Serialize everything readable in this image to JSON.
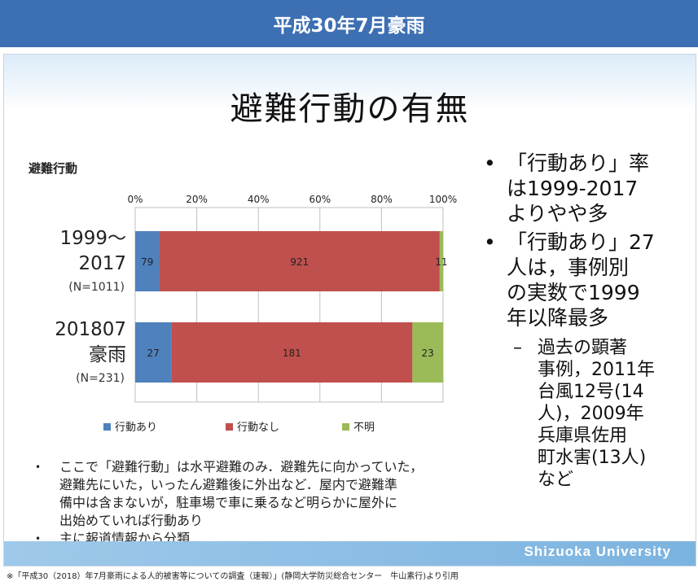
{
  "header": {
    "title": "平成30年7月豪雨"
  },
  "slide": {
    "title": "避難行動の有無",
    "brand": "Shizuoka University"
  },
  "chart_data": {
    "type": "bar",
    "orientation": "horizontal",
    "stacked": "percent",
    "title": "避難行動",
    "xlim": [
      0,
      100
    ],
    "ticks": [
      "0%",
      "20%",
      "40%",
      "60%",
      "80%",
      "100%"
    ],
    "categories": [
      {
        "line1": "1999～",
        "line2": "2017",
        "n": "(N=1011)"
      },
      {
        "line1": "201807",
        "line2": "豪雨",
        "n": "(N=231)"
      }
    ],
    "series": [
      {
        "name": "行動あり",
        "color": "#4f81bd",
        "values": [
          79,
          27
        ]
      },
      {
        "name": "行動なし",
        "color": "#c0504d",
        "values": [
          921,
          181
        ]
      },
      {
        "name": "不明",
        "color": "#9bbb59",
        "values": [
          11,
          23
        ]
      }
    ],
    "legend_position": "bottom",
    "grid": true
  },
  "bullets": [
    {
      "text": [
        "「行動あり」率",
        "は1999-2017",
        "よりやや多"
      ]
    },
    {
      "text": [
        "「行動あり」27",
        "人は，事例別",
        "の実数で1999",
        "年以降最多"
      ]
    }
  ],
  "sub_bullet": {
    "text": [
      "過去の顕著",
      "事例，2011年",
      "台風12号(14",
      "人)，2009年",
      "兵庫県佐用",
      "町水害(13人)",
      "など"
    ]
  },
  "notes": [
    {
      "text": [
        "ここで「避難行動」は水平避難のみ．避難先に向かっていた，",
        "避難先にいた，いったん避難後に外出など．屋内で避難準",
        "備中は含まないが，駐車場で車に乗るなど明らかに屋外に",
        "出始めていれば行動あり"
      ]
    },
    {
      "text": [
        "主に報道情報から分類"
      ]
    }
  ],
  "citation": "※「平成30（2018）年7月豪雨による人的被害等についての調査（速報）」(静岡大学防災総合センター　牛山素行)より引用"
}
